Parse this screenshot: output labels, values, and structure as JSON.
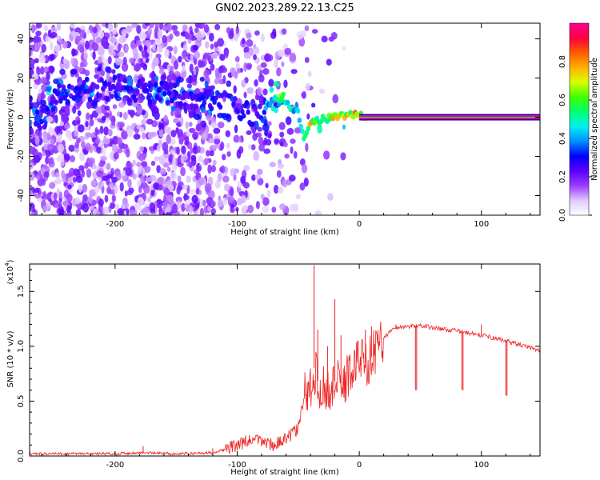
{
  "title": "GN02.2023.289.22.13.C25",
  "chart_data": [
    {
      "type": "heatmap",
      "xlabel": "Height of straight line (km)",
      "ylabel": "Frequency (Hz)",
      "xlim": [
        -270,
        148
      ],
      "ylim": [
        -50,
        48
      ],
      "xticks": [
        -200,
        -100,
        0,
        100
      ],
      "yticks": [
        -40,
        -20,
        0,
        20,
        40
      ],
      "colorbar": {
        "label": "Normalized spectral amplitude",
        "range": [
          0,
          1
        ],
        "ticks": [
          "0.0",
          "0.2",
          "0.4",
          "0.6",
          "0.8"
        ],
        "colors": [
          "#ffffff",
          "#e0c8ff",
          "#9a3cff",
          "#5a00ff",
          "#0000ff",
          "#0090ff",
          "#00f0f0",
          "#00ff70",
          "#40ff00",
          "#d8ff00",
          "#ffb000",
          "#ff5a00",
          "#ff0040",
          "#ff0090"
        ]
      },
      "ridge": [
        {
          "x": -255,
          "f": 9,
          "a": 0.35
        },
        {
          "x": -235,
          "f": 13,
          "a": 0.3
        },
        {
          "x": -200,
          "f": 15,
          "a": 0.28
        },
        {
          "x": -160,
          "f": 12,
          "a": 0.28
        },
        {
          "x": -120,
          "f": 8,
          "a": 0.3
        },
        {
          "x": -100,
          "f": 5,
          "a": 0.32
        },
        {
          "x": -80,
          "f": 0,
          "a": 0.3
        },
        {
          "x": -70,
          "f": 10,
          "a": 0.55
        },
        {
          "x": -60,
          "f": 7,
          "a": 0.55
        },
        {
          "x": -50,
          "f": 2,
          "a": 0.5
        },
        {
          "x": -45,
          "f": -11,
          "a": 0.5
        },
        {
          "x": -40,
          "f": -3,
          "a": 0.75
        },
        {
          "x": -30,
          "f": -1,
          "a": 0.6
        },
        {
          "x": -20,
          "f": 0,
          "a": 0.75
        },
        {
          "x": -10,
          "f": 1,
          "a": 0.7
        },
        {
          "x": 0,
          "f": 1,
          "a": 0.8
        },
        {
          "x": 148,
          "f": 0,
          "a": 0.95
        }
      ]
    },
    {
      "type": "line",
      "xlabel": "Height of straight line (km)",
      "ylabel": "SNR (10 * v/v)",
      "scale_label": "(x10",
      "scale_exp": "4",
      "xlim": [
        -270,
        148
      ],
      "ylim": [
        0,
        1.75
      ],
      "xticks": [
        -200,
        -100,
        0,
        100
      ],
      "yticks": [
        "0.0",
        "0.5",
        "1.0",
        "1.5"
      ],
      "color": "#ee2222",
      "series": [
        {
          "x": [
            -270,
            -230,
            -200,
            -180,
            -150,
            -120,
            -110,
            -100,
            -90,
            -80,
            -70,
            -60,
            -50,
            -45,
            -40,
            -37,
            -35,
            -30,
            -25,
            -20,
            -15,
            -10,
            -5,
            0,
            5,
            10,
            15,
            20,
            25,
            30,
            40,
            50,
            60,
            80,
            100,
            120,
            148
          ],
          "y": [
            0.02,
            0.02,
            0.02,
            0.03,
            0.02,
            0.03,
            0.06,
            0.1,
            0.14,
            0.14,
            0.1,
            0.15,
            0.25,
            0.55,
            0.62,
            0.8,
            0.7,
            0.62,
            0.58,
            0.68,
            0.62,
            0.72,
            0.8,
            0.9,
            0.85,
            0.9,
            1.0,
            1.08,
            1.13,
            1.17,
            1.18,
            1.19,
            1.17,
            1.14,
            1.1,
            1.05,
            0.96
          ]
        }
      ],
      "spikes": [
        {
          "x": -177,
          "y": 0.09
        },
        {
          "x": -120,
          "y": 0.07
        },
        {
          "x": -37,
          "y": 1.74
        },
        {
          "x": -34,
          "y": 1.15
        },
        {
          "x": -26,
          "y": 1.0
        },
        {
          "x": -20,
          "y": 1.43
        },
        {
          "x": -15,
          "y": 1.1
        },
        {
          "x": 5,
          "y": 1.15
        },
        {
          "x": 10,
          "y": 1.18
        },
        {
          "x": 30,
          "y": 1.2
        },
        {
          "x": 100,
          "y": 1.2
        }
      ],
      "dips": [
        {
          "x": 46,
          "y": 0.6
        },
        {
          "x": 84,
          "y": 0.6
        },
        {
          "x": 120,
          "y": 0.55
        }
      ]
    }
  ]
}
